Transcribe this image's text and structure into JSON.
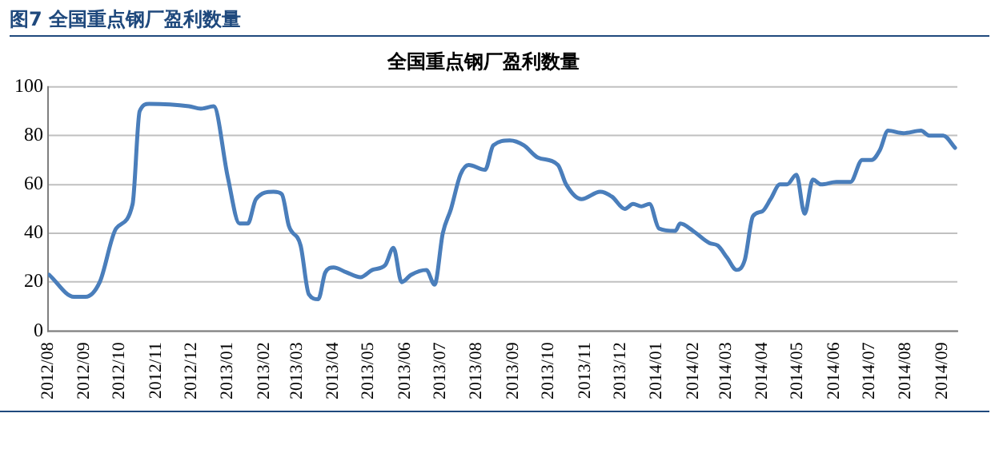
{
  "chart_data": {
    "type": "line",
    "title": "全国重点钢厂盈利数量",
    "subtitle": "图7  全国重点钢厂盈利数量",
    "x": [
      "2012-08-02",
      "2012-08-23",
      "2012-09-02",
      "2012-09-14",
      "2012-09-28",
      "2012-10-12",
      "2012-10-18",
      "2012-10-26",
      "2012-11-29",
      "2012-12-09",
      "2012-12-20",
      "2013-01-01",
      "2013-01-11",
      "2013-01-18",
      "2013-01-25",
      "2013-02-09",
      "2013-02-16",
      "2013-02-22",
      "2013-03-04",
      "2013-03-11",
      "2013-03-19",
      "2013-03-25",
      "2013-04-01",
      "2013-04-12",
      "2013-04-24",
      "2013-05-04",
      "2013-05-15",
      "2013-05-22",
      "2013-05-29",
      "2013-06-06",
      "2013-06-19",
      "2013-06-26",
      "2013-07-03",
      "2013-07-10",
      "2013-07-18",
      "2013-07-25",
      "2013-08-08",
      "2013-08-15",
      "2013-08-29",
      "2013-09-10",
      "2013-09-22",
      "2013-10-09",
      "2013-10-16",
      "2013-10-29",
      "2013-11-14",
      "2013-11-24",
      "2013-12-05",
      "2013-12-12",
      "2013-12-19",
      "2013-12-26",
      "2014-01-03",
      "2014-01-17",
      "2014-01-21",
      "2014-02-01",
      "2014-02-15",
      "2014-02-22",
      "2014-03-02",
      "2014-03-10",
      "2014-03-17",
      "2014-03-24",
      "2014-04-01",
      "2014-04-08",
      "2014-04-16",
      "2014-04-22",
      "2014-04-30",
      "2014-05-07",
      "2014-05-14",
      "2014-05-21",
      "2014-06-03",
      "2014-06-15",
      "2014-06-25",
      "2014-07-03",
      "2014-07-10",
      "2014-07-17",
      "2014-07-30",
      "2014-08-14",
      "2014-08-21",
      "2014-09-02",
      "2014-09-12"
    ],
    "series": [
      {
        "color": "#4a7ebb",
        "values": [
          23,
          14,
          14,
          20,
          42,
          52,
          90,
          93,
          92,
          91,
          92,
          63,
          44,
          44,
          54,
          57,
          56,
          43,
          35,
          15,
          13,
          24,
          26,
          24,
          22,
          25,
          27,
          34,
          20,
          23,
          25,
          19,
          40,
          50,
          64,
          68,
          66,
          76,
          78,
          76,
          71,
          68,
          60,
          54,
          57,
          55,
          50,
          52,
          51,
          52,
          42,
          41,
          44,
          41,
          36,
          35,
          30,
          25,
          29,
          47,
          49,
          54,
          60,
          60,
          64,
          48,
          62,
          60,
          61,
          61,
          70,
          70,
          74,
          82,
          81,
          82,
          80,
          80,
          75
        ]
      }
    ],
    "xlim": [
      "2012-08-01",
      "2014-09-14"
    ],
    "xticks": [
      {
        "value": "2012-08",
        "label": "2012/08"
      },
      {
        "value": "2012-09",
        "label": "2012/09"
      },
      {
        "value": "2012-10",
        "label": "2012/10"
      },
      {
        "value": "2012-11",
        "label": "2012/11"
      },
      {
        "value": "2012-12",
        "label": "2012/12"
      },
      {
        "value": "2013-01",
        "label": "2013/01"
      },
      {
        "value": "2013-02",
        "label": "2013/02"
      },
      {
        "value": "2013-03",
        "label": "2013/03"
      },
      {
        "value": "2013-04",
        "label": "2013/04"
      },
      {
        "value": "2013-05",
        "label": "2013/05"
      },
      {
        "value": "2013-06",
        "label": "2013/06"
      },
      {
        "value": "2013-07",
        "label": "2013/07"
      },
      {
        "value": "2013-08",
        "label": "2013/08"
      },
      {
        "value": "2013-09",
        "label": "2013/09"
      },
      {
        "value": "2013-10",
        "label": "2013/10"
      },
      {
        "value": "2013-11",
        "label": "2013/11"
      },
      {
        "value": "2013-12",
        "label": "2013/12"
      },
      {
        "value": "2014-01",
        "label": "2014/01"
      },
      {
        "value": "2014-02",
        "label": "2014/02"
      },
      {
        "value": "2014-03",
        "label": "2014/03"
      },
      {
        "value": "2014-04",
        "label": "2014/04"
      },
      {
        "value": "2014-05",
        "label": "2014/05"
      },
      {
        "value": "2014-06",
        "label": "2014/06"
      },
      {
        "value": "2014-07",
        "label": "2014/07"
      },
      {
        "value": "2014-08",
        "label": "2014/08"
      },
      {
        "value": "2014-09",
        "label": "2014/09"
      }
    ],
    "ylim": [
      0,
      100
    ],
    "yticks": [
      0,
      20,
      40,
      60,
      80,
      100
    ],
    "grid": "y",
    "legend": false,
    "marker": "none",
    "line_style": "solid"
  }
}
